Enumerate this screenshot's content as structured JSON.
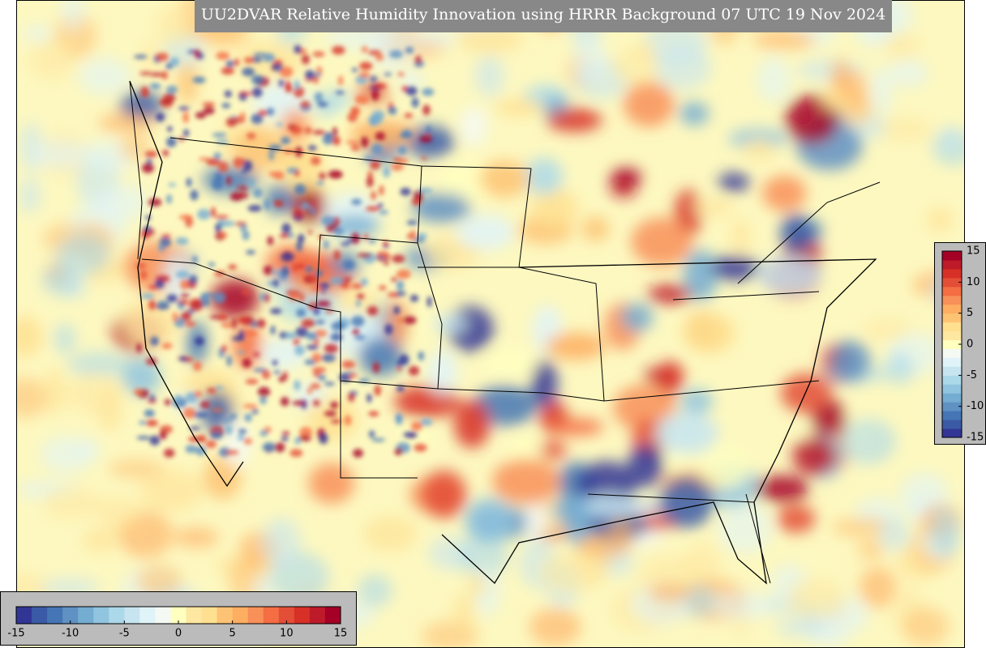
{
  "title": "UU2DVAR Relative Humidity Innovation using HRRR Background 07 UTC 19 Nov 2024",
  "colorbar_horizontal": {
    "ticks": [
      -15,
      -10,
      -5,
      0,
      5,
      10,
      15
    ]
  },
  "colorbar_vertical": {
    "ticks": [
      15,
      10,
      5,
      0,
      -5,
      -10,
      -15
    ]
  }
}
